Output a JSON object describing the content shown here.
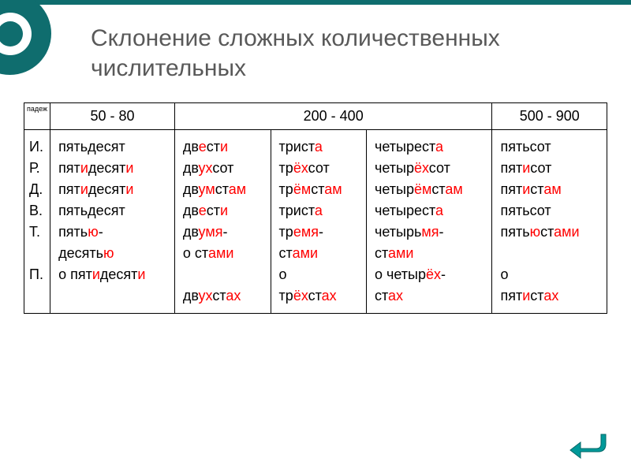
{
  "title": "Склонение сложных количественных числительных",
  "caseHeader": "падеж",
  "ranges": {
    "r1": "50 - 80",
    "r2": "200 - 400",
    "r3": "500 - 900"
  },
  "cases": [
    "И.",
    "Р.",
    "Д.",
    "В.",
    "Т.",
    "",
    "П."
  ],
  "col50": [
    [
      "пятьдесят"
    ],
    [
      "пят",
      "и",
      "десят",
      "и"
    ],
    [
      "пят",
      "и",
      "десят",
      "и"
    ],
    [
      "пятьдесят"
    ],
    [
      "пять",
      "ю",
      "-"
    ],
    [
      "десять",
      "ю"
    ],
    [
      "о пят",
      "и",
      "десят",
      "и"
    ]
  ],
  "col200a": [
    [
      "дв",
      "е",
      "ст",
      "и"
    ],
    [
      "дв",
      "ух",
      "сот"
    ],
    [
      "дв",
      "ум",
      "ст",
      "ам"
    ],
    [
      "дв",
      "е",
      "ст",
      "и"
    ],
    [
      "дв",
      "умя",
      "-"
    ],
    [
      "о ст",
      "ами"
    ],
    [
      ""
    ],
    [
      "дв",
      "ух",
      "ст",
      "ах"
    ]
  ],
  "col200b": [
    [
      "трист",
      "а"
    ],
    [
      "тр",
      "ёх",
      "сот"
    ],
    [
      "тр",
      "ём",
      "ст",
      "ам"
    ],
    [
      "трист",
      "а"
    ],
    [
      "тр",
      "емя",
      "-"
    ],
    [
      "ст",
      "ами"
    ],
    [
      "о"
    ],
    [
      "тр",
      "ёх",
      "ст",
      "ах"
    ]
  ],
  "col200c": [
    [
      "четырест",
      "а"
    ],
    [
      "четыр",
      "ёх",
      "сот"
    ],
    [
      "четыр",
      "ём",
      "ст",
      "ам"
    ],
    [
      "четырест",
      "а"
    ],
    [
      "четырь",
      "мя",
      "-"
    ],
    [
      "ст",
      "ами"
    ],
    [
      "о четыр",
      "ёх",
      "-"
    ],
    [
      "ст",
      "ах"
    ]
  ],
  "col500": [
    [
      "пятьсот"
    ],
    [
      "пят",
      "и",
      "сот"
    ],
    [
      "пят",
      "и",
      "ст",
      "ам"
    ],
    [
      "пятьсот"
    ],
    [
      "пять",
      "ю",
      "ст",
      "ами"
    ],
    [
      ""
    ],
    [
      "о"
    ],
    [
      "пят",
      "и",
      "ст",
      "ах"
    ]
  ],
  "colors": {
    "accent": "#0f6d6e",
    "text": "#000000",
    "title": "#595959",
    "highlight": "#ff0000",
    "return": "#009999"
  }
}
